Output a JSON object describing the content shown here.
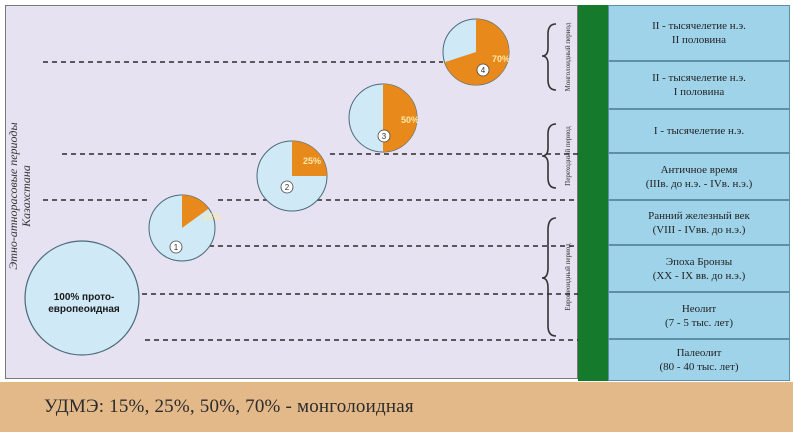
{
  "y_axis_title": [
    "Этно-атнорасовые периоды",
    "Казахстана"
  ],
  "big_circle_label": [
    "100% прото-",
    "европеоидная"
  ],
  "circles": [
    {
      "index": "1",
      "percent": "15%",
      "share": 0.15
    },
    {
      "index": "2",
      "percent": "25%",
      "share": 0.25
    },
    {
      "index": "3",
      "percent": "50%",
      "share": 0.5
    },
    {
      "index": "4",
      "percent": "70%",
      "share": 0.7
    }
  ],
  "bracket_labels": [
    "Монголоидный период",
    "Переходный период",
    "Европеоидный период"
  ],
  "periods": [
    {
      "line1": "II - тысячелетие н.э.",
      "line2": "II половина"
    },
    {
      "line1": "II - тысячелетие н.э.",
      "line2": "I половина"
    },
    {
      "line1": "I - тысячелетие н.э.",
      "line2": ""
    },
    {
      "line1": "Античное время",
      "line2": "(IIIв. до н.э. - IVв. н.э.)"
    },
    {
      "line1": "Ранний железный век",
      "line2": "(VIII - IVвв. до н.э.)"
    },
    {
      "line1": "Эпоха Бронзы",
      "line2": "(XX - IX вв. до н.э.)"
    },
    {
      "line1": "Неолит",
      "line2": "(7 - 5 тыс. лет)"
    },
    {
      "line1": "Палеолит",
      "line2": "(80 - 40 тыс. лет)"
    }
  ],
  "footer": "УДМЭ: 15%, 25%, 50%, 70% - монголоидная",
  "colors": {
    "plot_bg": "#e7e2f1",
    "circle": "#cfe9f7",
    "wedge": "#e8891c",
    "green": "#157a2c",
    "period_bg": "#9fd3ea",
    "footer_bg": "#e3b98a"
  }
}
